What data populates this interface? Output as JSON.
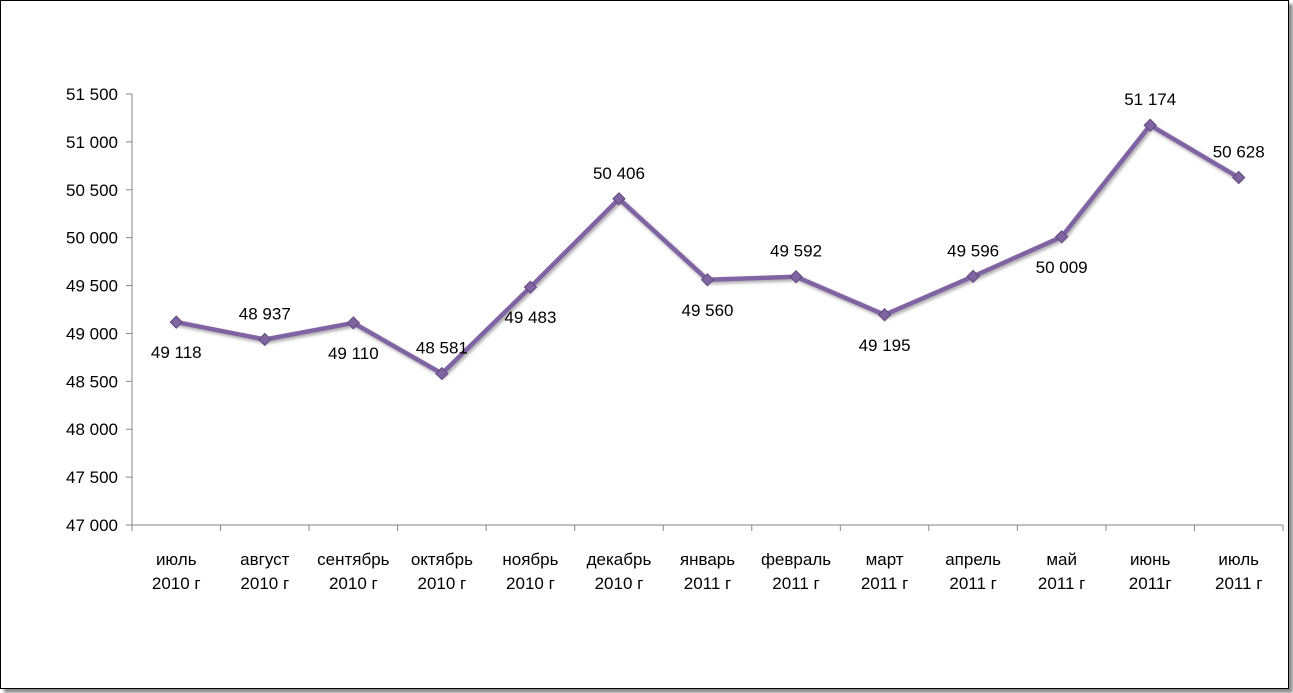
{
  "chart_data": {
    "type": "line",
    "title": "",
    "xlabel": "",
    "ylabel": "",
    "categories": [
      [
        "июль",
        "2010 г"
      ],
      [
        "август",
        "2010 г"
      ],
      [
        "сентябрь",
        "2010 г"
      ],
      [
        "октябрь",
        "2010 г"
      ],
      [
        "ноябрь",
        "2010 г"
      ],
      [
        "декабрь",
        "2010 г"
      ],
      [
        "январь",
        "2011 г"
      ],
      [
        "февраль",
        "2011 г"
      ],
      [
        "март",
        "2011 г"
      ],
      [
        "апрель",
        "2011 г"
      ],
      [
        "май",
        "2011 г"
      ],
      [
        "июнь",
        "2011г"
      ],
      [
        "июль",
        "2011 г"
      ]
    ],
    "values": [
      49118,
      48937,
      49110,
      48581,
      49483,
      50406,
      49560,
      49592,
      49195,
      49596,
      50009,
      51174,
      50628
    ],
    "data_labels": [
      "49 118",
      "48 937",
      "49 110",
      "48 581",
      "49 483",
      "50 406",
      "49 560",
      "49 592",
      "49 195",
      "49 596",
      "50 009",
      "51 174",
      "50 628"
    ],
    "label_positions": [
      "below",
      "above",
      "below",
      "above",
      "below",
      "above",
      "below",
      "above",
      "below",
      "above",
      "below",
      "above",
      "above"
    ],
    "ylim": [
      47000,
      51500
    ],
    "yticks": [
      47000,
      47500,
      48000,
      48500,
      49000,
      49500,
      50000,
      50500,
      51000,
      51500
    ],
    "ytick_labels": [
      "47 000",
      "47 500",
      "48 000",
      "48 500",
      "49 000",
      "49 500",
      "50 000",
      "50 500",
      "51 000",
      "51 500"
    ],
    "grid": false,
    "legend": "none",
    "line_color": "#8064A2",
    "marker_color": "#8064A2",
    "marker": "diamond"
  }
}
